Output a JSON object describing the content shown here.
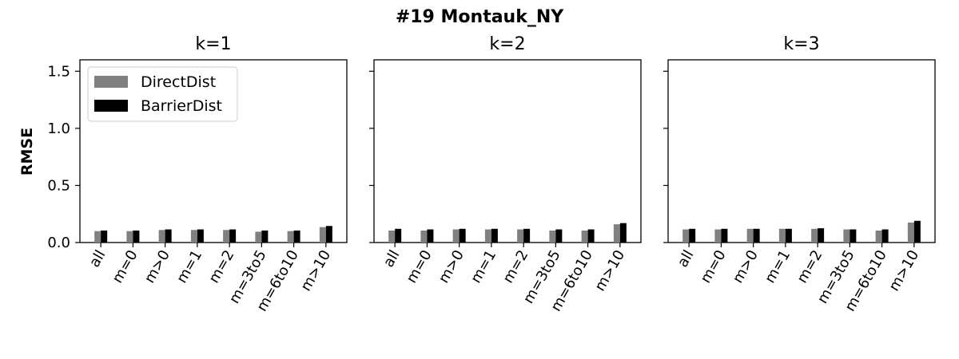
{
  "chart_data": {
    "type": "bar",
    "title": "#19 Montauk_NY",
    "ylabel": "RMSE",
    "ylim": [
      0,
      1.6
    ],
    "yticks": [
      "0.0",
      "0.5",
      "1.0",
      "1.5"
    ],
    "ytick_values": [
      0.0,
      0.5,
      1.0,
      1.5
    ],
    "categories": [
      "all",
      "m=0",
      "m>0",
      "m=1",
      "m=2",
      "m=3to5",
      "m=6to10",
      "m>10"
    ],
    "legend": {
      "placement": "upper-left",
      "entries": [
        "DirectDist",
        "BarrierDist"
      ]
    },
    "colors": {
      "DirectDist": "#808080",
      "BarrierDist": "#000000"
    },
    "panels": [
      {
        "title": "k=1",
        "series": [
          {
            "name": "DirectDist",
            "values": [
              0.1,
              0.1,
              0.11,
              0.11,
              0.11,
              0.095,
              0.1,
              0.135
            ]
          },
          {
            "name": "BarrierDist",
            "values": [
              0.105,
              0.105,
              0.115,
              0.115,
              0.115,
              0.105,
              0.105,
              0.145
            ]
          }
        ]
      },
      {
        "title": "k=2",
        "series": [
          {
            "name": "DirectDist",
            "values": [
              0.105,
              0.105,
              0.115,
              0.115,
              0.115,
              0.105,
              0.105,
              0.16
            ]
          },
          {
            "name": "BarrierDist",
            "values": [
              0.12,
              0.115,
              0.12,
              0.12,
              0.12,
              0.115,
              0.115,
              0.17
            ]
          }
        ]
      },
      {
        "title": "k=3",
        "series": [
          {
            "name": "DirectDist",
            "values": [
              0.115,
              0.115,
              0.12,
              0.12,
              0.12,
              0.115,
              0.105,
              0.175
            ]
          },
          {
            "name": "BarrierDist",
            "values": [
              0.12,
              0.12,
              0.12,
              0.12,
              0.125,
              0.115,
              0.115,
              0.19
            ]
          }
        ]
      }
    ]
  }
}
